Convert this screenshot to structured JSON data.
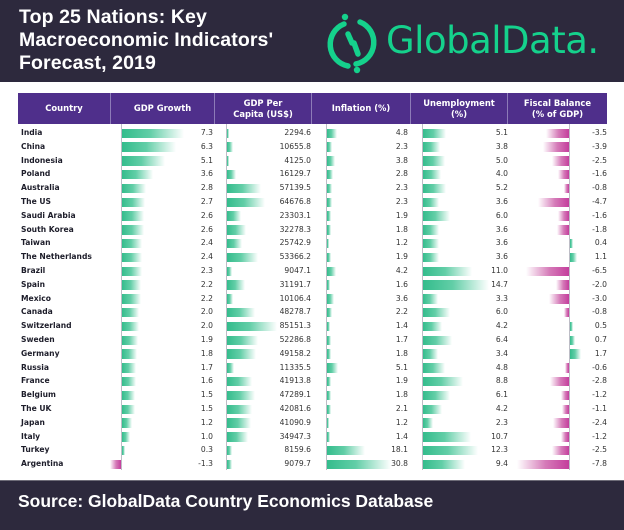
{
  "header": {
    "title_lines": [
      "Top 25 Nations: Key",
      "Macroeconomic Indicators'",
      "Forecast, 2019"
    ],
    "logo_text": "GlobalData.",
    "logo_icon": "globaldata-logo-icon"
  },
  "footer": {
    "source": "Source: GlobalData Country Economics Database"
  },
  "colors": {
    "band": "#2d293d",
    "header_bg": "#4f2f8b",
    "positive_bar": "#34bc8c",
    "negative_bar": "#c43d9c",
    "logo": "#15d18c"
  },
  "chart_data": {
    "type": "table",
    "title": "Top 25 Nations: Key Macroeconomic Indicators' Forecast, 2019",
    "columns": [
      "Country",
      "GDP Growth",
      "GDP Per Capita (US$)",
      "Inflation (%)",
      "Unemployment (%)",
      "Fiscal Balance (% of GDP)"
    ],
    "column_header_lines": [
      [
        "Country"
      ],
      [
        "GDP Growth"
      ],
      [
        "GDP Per",
        "Capita (US$)"
      ],
      [
        "Inflation (%)"
      ],
      [
        "Unemployment",
        "(%)"
      ],
      [
        "Fiscal Balance",
        "(% of GDP)"
      ]
    ],
    "rows": [
      {
        "country": "India",
        "gdp_growth": "7.3",
        "gdp_per_capita": "2294.6",
        "inflation": "4.8",
        "unemployment": "5.1",
        "fiscal_balance": "-3.5"
      },
      {
        "country": "China",
        "gdp_growth": "6.3",
        "gdp_per_capita": "10655.8",
        "inflation": "2.3",
        "unemployment": "3.8",
        "fiscal_balance": "-3.9"
      },
      {
        "country": "Indonesia",
        "gdp_growth": "5.1",
        "gdp_per_capita": "4125.0",
        "inflation": "3.8",
        "unemployment": "5.0",
        "fiscal_balance": "-2.5"
      },
      {
        "country": "Poland",
        "gdp_growth": "3.6",
        "gdp_per_capita": "16129.7",
        "inflation": "2.8",
        "unemployment": "4.0",
        "fiscal_balance": "-1.6"
      },
      {
        "country": "Australia",
        "gdp_growth": "2.8",
        "gdp_per_capita": "57139.5",
        "inflation": "2.3",
        "unemployment": "5.2",
        "fiscal_balance": "-0.8"
      },
      {
        "country": "The US",
        "gdp_growth": "2.7",
        "gdp_per_capita": "64676.8",
        "inflation": "2.3",
        "unemployment": "3.6",
        "fiscal_balance": "-4.7"
      },
      {
        "country": "Saudi Arabia",
        "gdp_growth": "2.6",
        "gdp_per_capita": "23303.1",
        "inflation": "1.9",
        "unemployment": "6.0",
        "fiscal_balance": "-1.6"
      },
      {
        "country": "South Korea",
        "gdp_growth": "2.6",
        "gdp_per_capita": "32278.3",
        "inflation": "1.8",
        "unemployment": "3.6",
        "fiscal_balance": "-1.8"
      },
      {
        "country": "Taiwan",
        "gdp_growth": "2.4",
        "gdp_per_capita": "25742.9",
        "inflation": "1.2",
        "unemployment": "3.6",
        "fiscal_balance": "0.4"
      },
      {
        "country": "The Netherlands",
        "gdp_growth": "2.4",
        "gdp_per_capita": "53366.2",
        "inflation": "1.9",
        "unemployment": "3.6",
        "fiscal_balance": "1.1"
      },
      {
        "country": "Brazil",
        "gdp_growth": "2.3",
        "gdp_per_capita": "9047.1",
        "inflation": "4.2",
        "unemployment": "11.0",
        "fiscal_balance": "-6.5"
      },
      {
        "country": "Spain",
        "gdp_growth": "2.2",
        "gdp_per_capita": "31191.7",
        "inflation": "1.6",
        "unemployment": "14.7",
        "fiscal_balance": "-2.0"
      },
      {
        "country": "Mexico",
        "gdp_growth": "2.2",
        "gdp_per_capita": "10106.4",
        "inflation": "3.6",
        "unemployment": "3.3",
        "fiscal_balance": "-3.0"
      },
      {
        "country": "Canada",
        "gdp_growth": "2.0",
        "gdp_per_capita": "48278.7",
        "inflation": "2.2",
        "unemployment": "6.0",
        "fiscal_balance": "-0.8"
      },
      {
        "country": "Switzerland",
        "gdp_growth": "2.0",
        "gdp_per_capita": "85151.3",
        "inflation": "1.4",
        "unemployment": "4.2",
        "fiscal_balance": "0.5"
      },
      {
        "country": "Sweden",
        "gdp_growth": "1.9",
        "gdp_per_capita": "52286.8",
        "inflation": "1.7",
        "unemployment": "6.4",
        "fiscal_balance": "0.7"
      },
      {
        "country": "Germany",
        "gdp_growth": "1.8",
        "gdp_per_capita": "49158.2",
        "inflation": "1.8",
        "unemployment": "3.4",
        "fiscal_balance": "1.7"
      },
      {
        "country": "Russia",
        "gdp_growth": "1.7",
        "gdp_per_capita": "11335.5",
        "inflation": "5.1",
        "unemployment": "4.8",
        "fiscal_balance": "-0.6"
      },
      {
        "country": "France",
        "gdp_growth": "1.6",
        "gdp_per_capita": "41913.8",
        "inflation": "1.9",
        "unemployment": "8.8",
        "fiscal_balance": "-2.8"
      },
      {
        "country": "Belgium",
        "gdp_growth": "1.5",
        "gdp_per_capita": "47289.1",
        "inflation": "1.8",
        "unemployment": "6.1",
        "fiscal_balance": "-1.2"
      },
      {
        "country": "The UK",
        "gdp_growth": "1.5",
        "gdp_per_capita": "42081.6",
        "inflation": "2.1",
        "unemployment": "4.2",
        "fiscal_balance": "-1.1"
      },
      {
        "country": "Japan",
        "gdp_growth": "1.2",
        "gdp_per_capita": "41090.9",
        "inflation": "1.2",
        "unemployment": "2.3",
        "fiscal_balance": "-2.4"
      },
      {
        "country": "Italy",
        "gdp_growth": "1.0",
        "gdp_per_capita": "34947.3",
        "inflation": "1.4",
        "unemployment": "10.7",
        "fiscal_balance": "-1.2"
      },
      {
        "country": "Turkey",
        "gdp_growth": "0.3",
        "gdp_per_capita": "8159.6",
        "inflation": "18.1",
        "unemployment": "12.3",
        "fiscal_balance": "-2.5"
      },
      {
        "country": "Argentina",
        "gdp_growth": "-1.3",
        "gdp_per_capita": "9079.7",
        "inflation": "30.8",
        "unemployment": "9.4",
        "fiscal_balance": "-7.8"
      }
    ]
  }
}
